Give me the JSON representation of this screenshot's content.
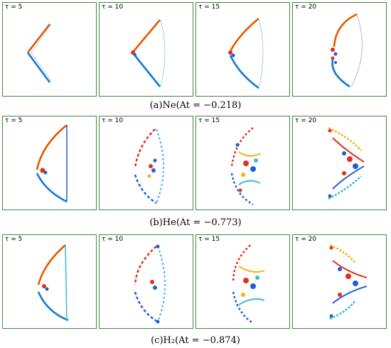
{
  "rows": [
    {
      "caption": "(a)Ne(At = −0.218)",
      "panels": [
        {
          "tau": "τ = 5"
        },
        {
          "tau": "τ = 10"
        },
        {
          "tau": "τ = 15"
        },
        {
          "tau": "τ = 20"
        }
      ]
    },
    {
      "caption": "(b)He(At = −0.773)",
      "panels": [
        {
          "tau": "τ = 5"
        },
        {
          "tau": "τ = 10"
        },
        {
          "tau": "τ = 15"
        },
        {
          "tau": "τ = 20"
        }
      ]
    },
    {
      "caption": "(c)H₂(At = −0.874)",
      "panels": [
        {
          "tau": "τ = 5"
        },
        {
          "tau": "τ = 10"
        },
        {
          "tau": "τ = 15"
        },
        {
          "tau": "τ = 20"
        }
      ]
    }
  ],
  "colors": {
    "border": "#3a8a3a",
    "positive": "#e0301e",
    "warm": "#f2b21a",
    "negative": "#1f5fd6",
    "cool": "#3fb7e0"
  }
}
